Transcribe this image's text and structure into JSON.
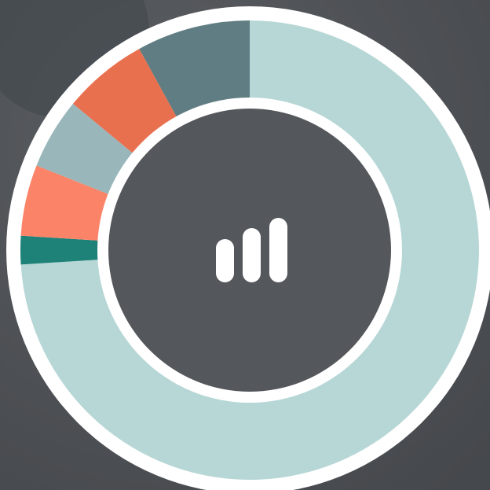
{
  "chart_data": {
    "type": "donut",
    "values": [
      74,
      2,
      5,
      5,
      6,
      8
    ],
    "colors": [
      "#b7d7d6",
      "#1e8278",
      "#fb8468",
      "#99b6bb",
      "#e8704e",
      "#5f7d82"
    ]
  }
}
